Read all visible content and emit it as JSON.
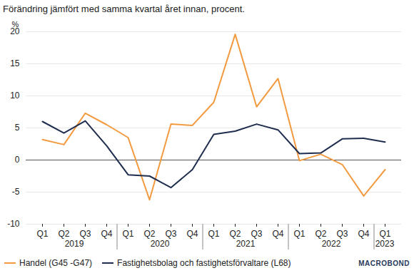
{
  "chart_data": {
    "type": "line",
    "title": "Förändring jämfört med samma kvartal året innan, procent.",
    "y_label": "%",
    "categories": [
      "Q1",
      "Q2",
      "Q3",
      "Q4",
      "Q1",
      "Q2",
      "Q3",
      "Q4",
      "Q1",
      "Q2",
      "Q3",
      "Q4",
      "Q1",
      "Q2",
      "Q3",
      "Q4",
      "Q1"
    ],
    "years": [
      "2019",
      "2020",
      "2021",
      "2022",
      "2023"
    ],
    "series": [
      {
        "name": "Handel (G45 -G47)",
        "color": "#f29a3f",
        "values": [
          3.2,
          2.4,
          7.3,
          5.5,
          3.5,
          -6.2,
          5.6,
          5.4,
          9.0,
          19.6,
          8.3,
          12.7,
          -0.1,
          0.9,
          -0.7,
          -5.6,
          -1.5
        ]
      },
      {
        "name": "Fastighetsbolag och fastighetsförvaltare (L68)",
        "color": "#1f2d4e",
        "values": [
          6.0,
          4.2,
          6.1,
          2.2,
          -2.3,
          -2.5,
          -4.3,
          -1.5,
          4.0,
          4.5,
          5.6,
          4.7,
          1.0,
          1.1,
          3.3,
          3.4,
          2.8
        ]
      }
    ],
    "ylim": [
      -10,
      20
    ],
    "yticks": [
      -10,
      -5,
      0,
      5,
      10,
      15,
      20
    ],
    "grid": true,
    "legend": "bottom",
    "logo": "MACROBOND"
  }
}
